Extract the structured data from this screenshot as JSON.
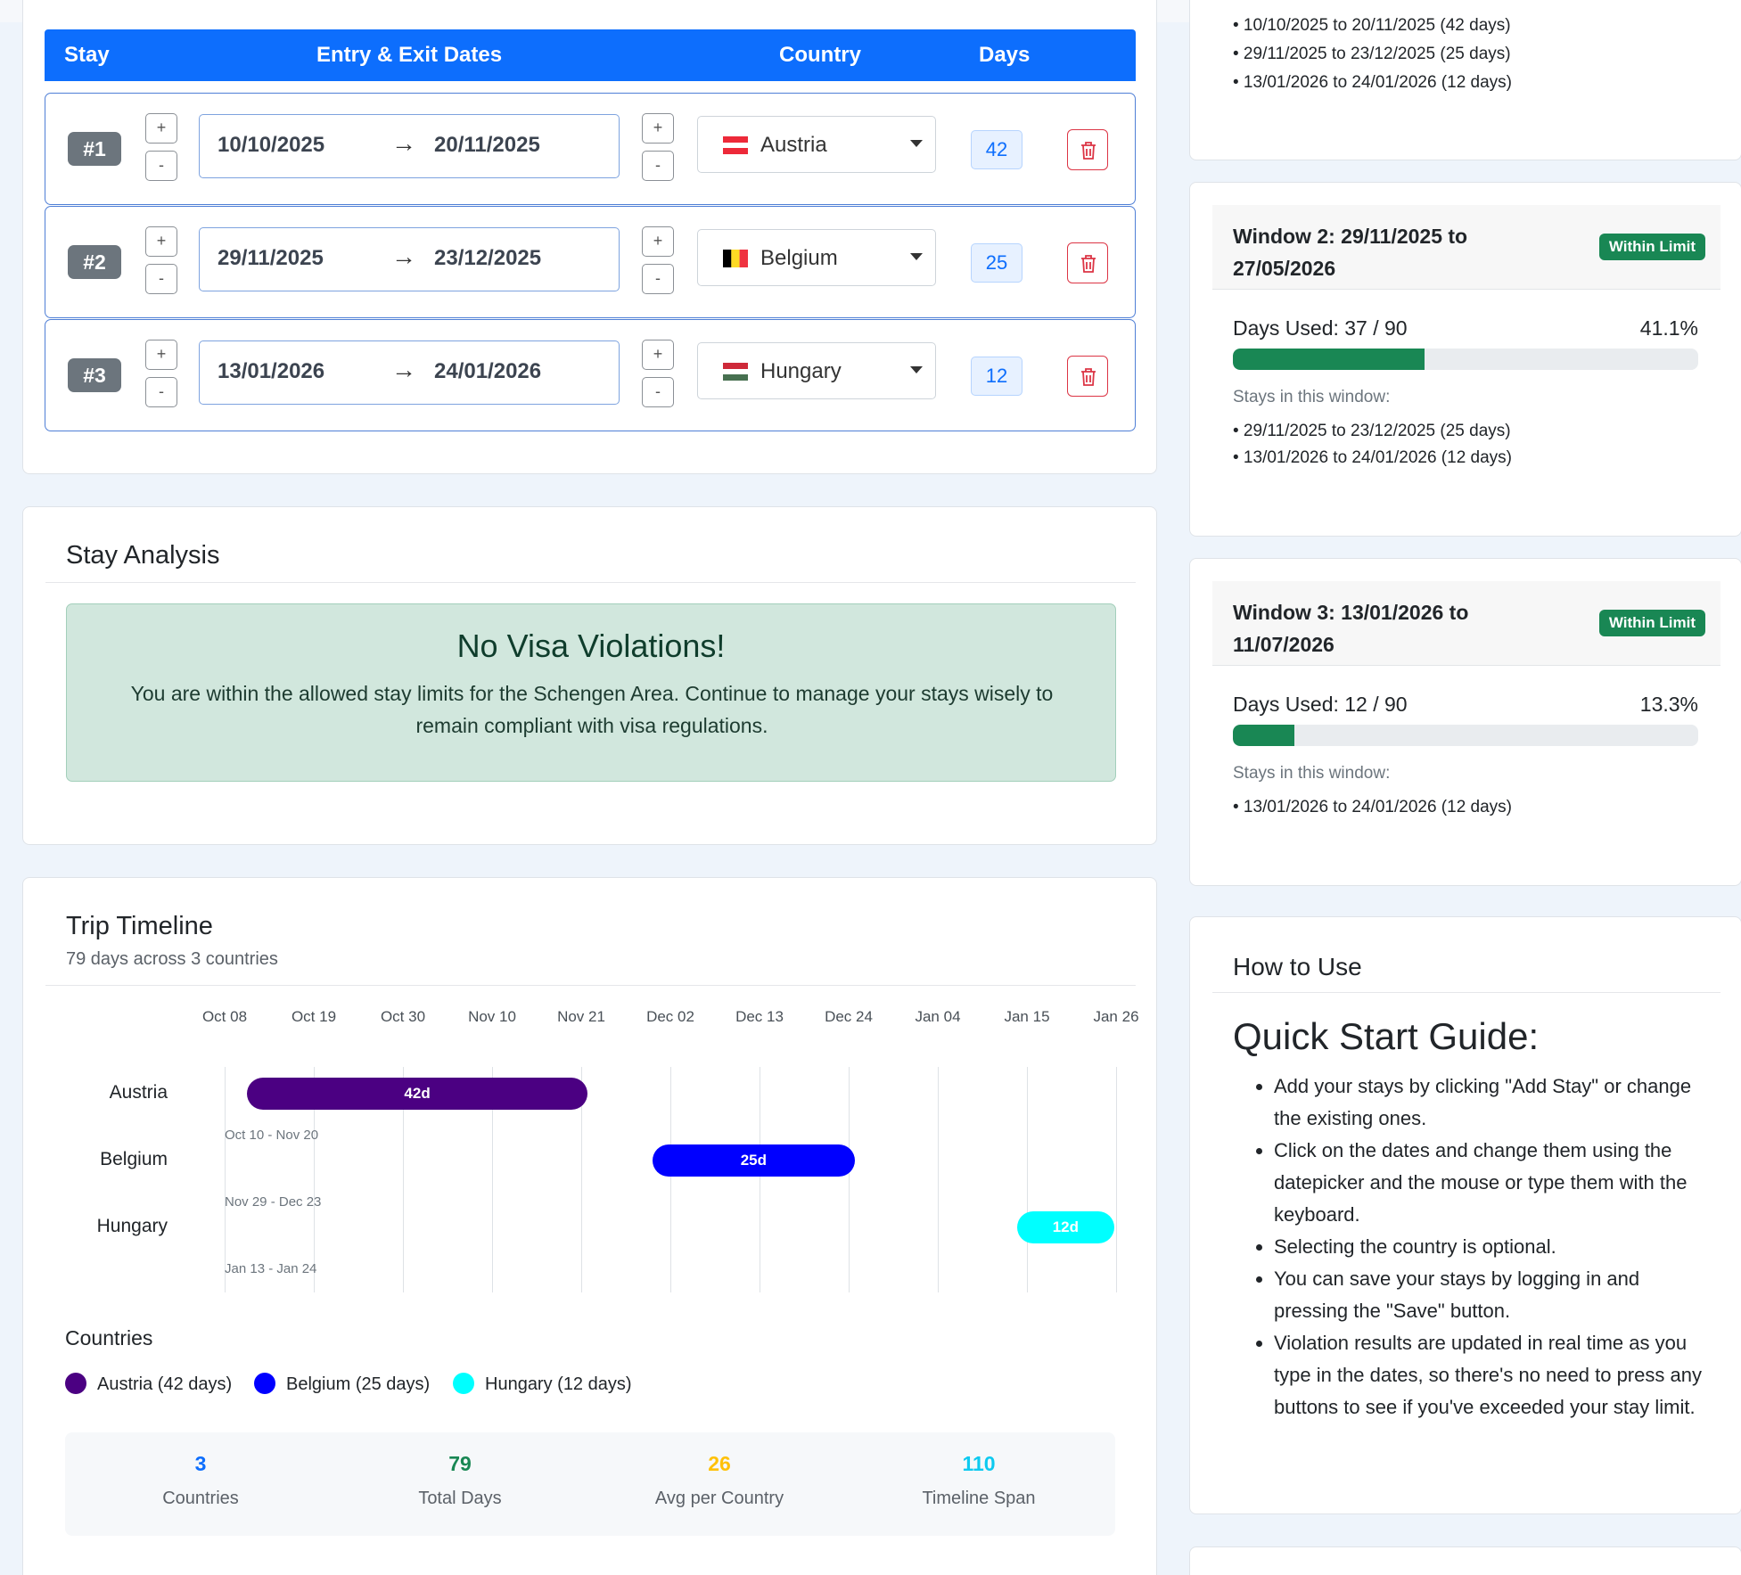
{
  "stays": {
    "headers": {
      "stay": "Stay",
      "dates": "Entry & Exit Dates",
      "country": "Country",
      "days": "Days"
    },
    "rows": [
      {
        "index": "#1",
        "entry": "10/10/2025",
        "exit": "20/11/2025",
        "country": "Austria",
        "days": "42"
      },
      {
        "index": "#2",
        "entry": "29/11/2025",
        "exit": "23/12/2025",
        "country": "Belgium",
        "days": "25"
      },
      {
        "index": "#3",
        "entry": "13/01/2026",
        "exit": "24/01/2026",
        "country": "Hungary",
        "days": "12"
      }
    ],
    "step_plus": "+",
    "step_minus": "-",
    "arrow": "→"
  },
  "analysis": {
    "title": "Stay Analysis",
    "heading": "No Visa Violations!",
    "message": "You are within the allowed stay limits for the Schengen Area. Continue to manage your stays wisely to remain compliant with visa regulations."
  },
  "timeline": {
    "title": "Trip Timeline",
    "subtitle": "79 days across 3 countries",
    "ticks": [
      "Oct 08",
      "Oct 19",
      "Oct 30",
      "Nov 10",
      "Nov 21",
      "Dec 02",
      "Dec 13",
      "Dec 24",
      "Jan 04",
      "Jan 15",
      "Jan 26"
    ],
    "rows": [
      {
        "country": "Austria",
        "bar_label": "42d",
        "range": "Oct 10 - Nov 20",
        "color": "#4b0082"
      },
      {
        "country": "Belgium",
        "bar_label": "25d",
        "range": "Nov 29 - Dec 23",
        "color": "#0000ff"
      },
      {
        "country": "Hungary",
        "bar_label": "12d",
        "range": "Jan 13 - Jan 24",
        "color": "#00ffff"
      }
    ],
    "countries_heading": "Countries",
    "legend": [
      "Austria (42 days)",
      "Belgium (25 days)",
      "Hungary (12 days)"
    ],
    "stats": [
      {
        "value": "3",
        "label": "Countries",
        "color": "#0d6efd"
      },
      {
        "value": "79",
        "label": "Total Days",
        "color": "#198754"
      },
      {
        "value": "26",
        "label": "Avg per Country",
        "color": "#ffc107"
      },
      {
        "value": "110",
        "label": "Timeline Span",
        "color": "#0dcaf0"
      }
    ]
  },
  "windows": {
    "window1_partial": [
      "• 10/10/2025 to 20/11/2025 (42 days)",
      "• 29/11/2025 to 23/12/2025 (25 days)",
      "• 13/01/2026 to 24/01/2026 (12 days)"
    ],
    "window2": {
      "title": "Window 2: 29/11/2025 to 27/05/2026",
      "badge": "Within Limit",
      "days_used": "Days Used: 37 / 90",
      "percent": "41.1%",
      "fill_percent": 41.1,
      "stays_label": "Stays in this window:",
      "stays": [
        "• 29/11/2025 to 23/12/2025 (25 days)",
        "• 13/01/2026 to 24/01/2026 (12 days)"
      ]
    },
    "window3": {
      "title": "Window 3: 13/01/2026 to 11/07/2026",
      "badge": "Within Limit",
      "days_used": "Days Used: 12 / 90",
      "percent": "13.3%",
      "fill_percent": 13.3,
      "stays_label": "Stays in this window:",
      "stays": [
        "• 13/01/2026 to 24/01/2026 (12 days)"
      ]
    }
  },
  "howto": {
    "title": "How to Use",
    "heading": "Quick Start Guide:",
    "items": [
      "Add your stays by clicking \"Add Stay\" or change the existing ones.",
      "Click on the dates and change them using the datepicker and the mouse or type them with the keyboard.",
      "Selecting the country is optional.",
      "You can save your stays by logging in and pressing the \"Save\" button.",
      "Violation results are updated in real time as you type in the dates, so there's no need to press any buttons to see if you've exceeded your stay limit."
    ]
  }
}
